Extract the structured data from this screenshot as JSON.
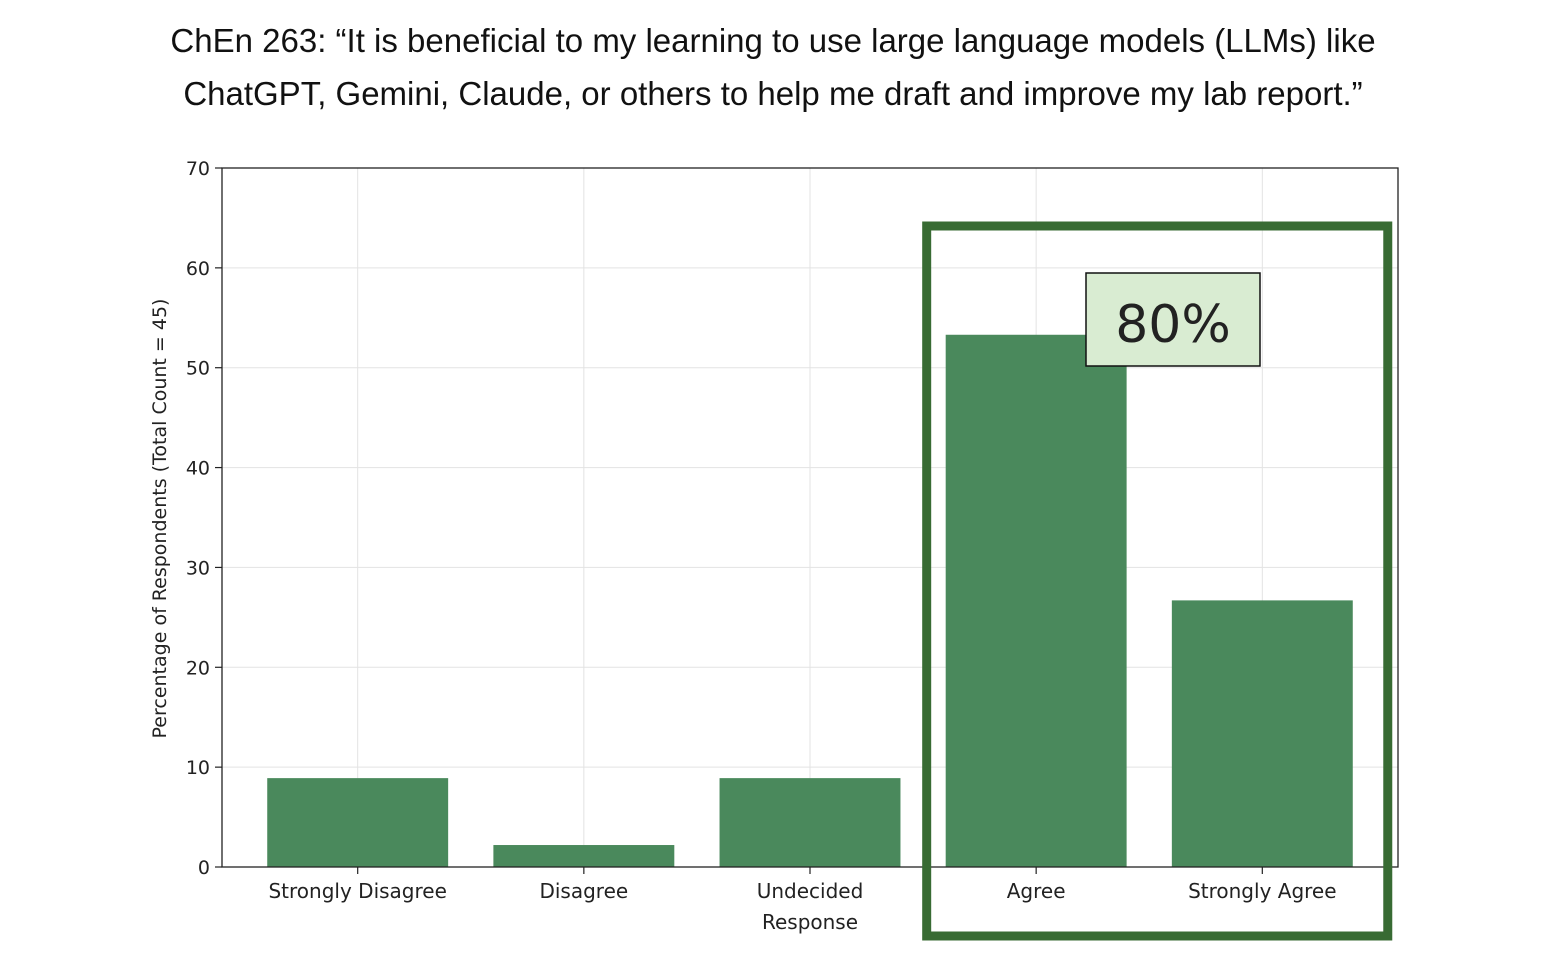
{
  "title_lines": [
    "ChEn 263: “It is beneficial to my learning to use large language models (LLMs) like",
    "ChatGPT, Gemini, Claude, or others to help me draft and improve my lab report.”"
  ],
  "callout": {
    "text": "80%",
    "box_border_color": "#386b33",
    "label_background": "#d9ecd2"
  },
  "chart_data": {
    "type": "bar",
    "categories": [
      "Strongly Disagree",
      "Disagree",
      "Undecided",
      "Agree",
      "Strongly Agree"
    ],
    "values": [
      8.9,
      2.2,
      8.9,
      53.3,
      26.7
    ],
    "xlabel": "Response",
    "ylabel": "Percentage of Respondents (Total Count = 45)",
    "ylim": [
      0,
      70
    ],
    "yticks": [
      0,
      10,
      20,
      30,
      40,
      50,
      60,
      70
    ],
    "grid": true,
    "bar_color": "#4a895c",
    "highlight_categories": [
      "Agree",
      "Strongly Agree"
    ]
  }
}
